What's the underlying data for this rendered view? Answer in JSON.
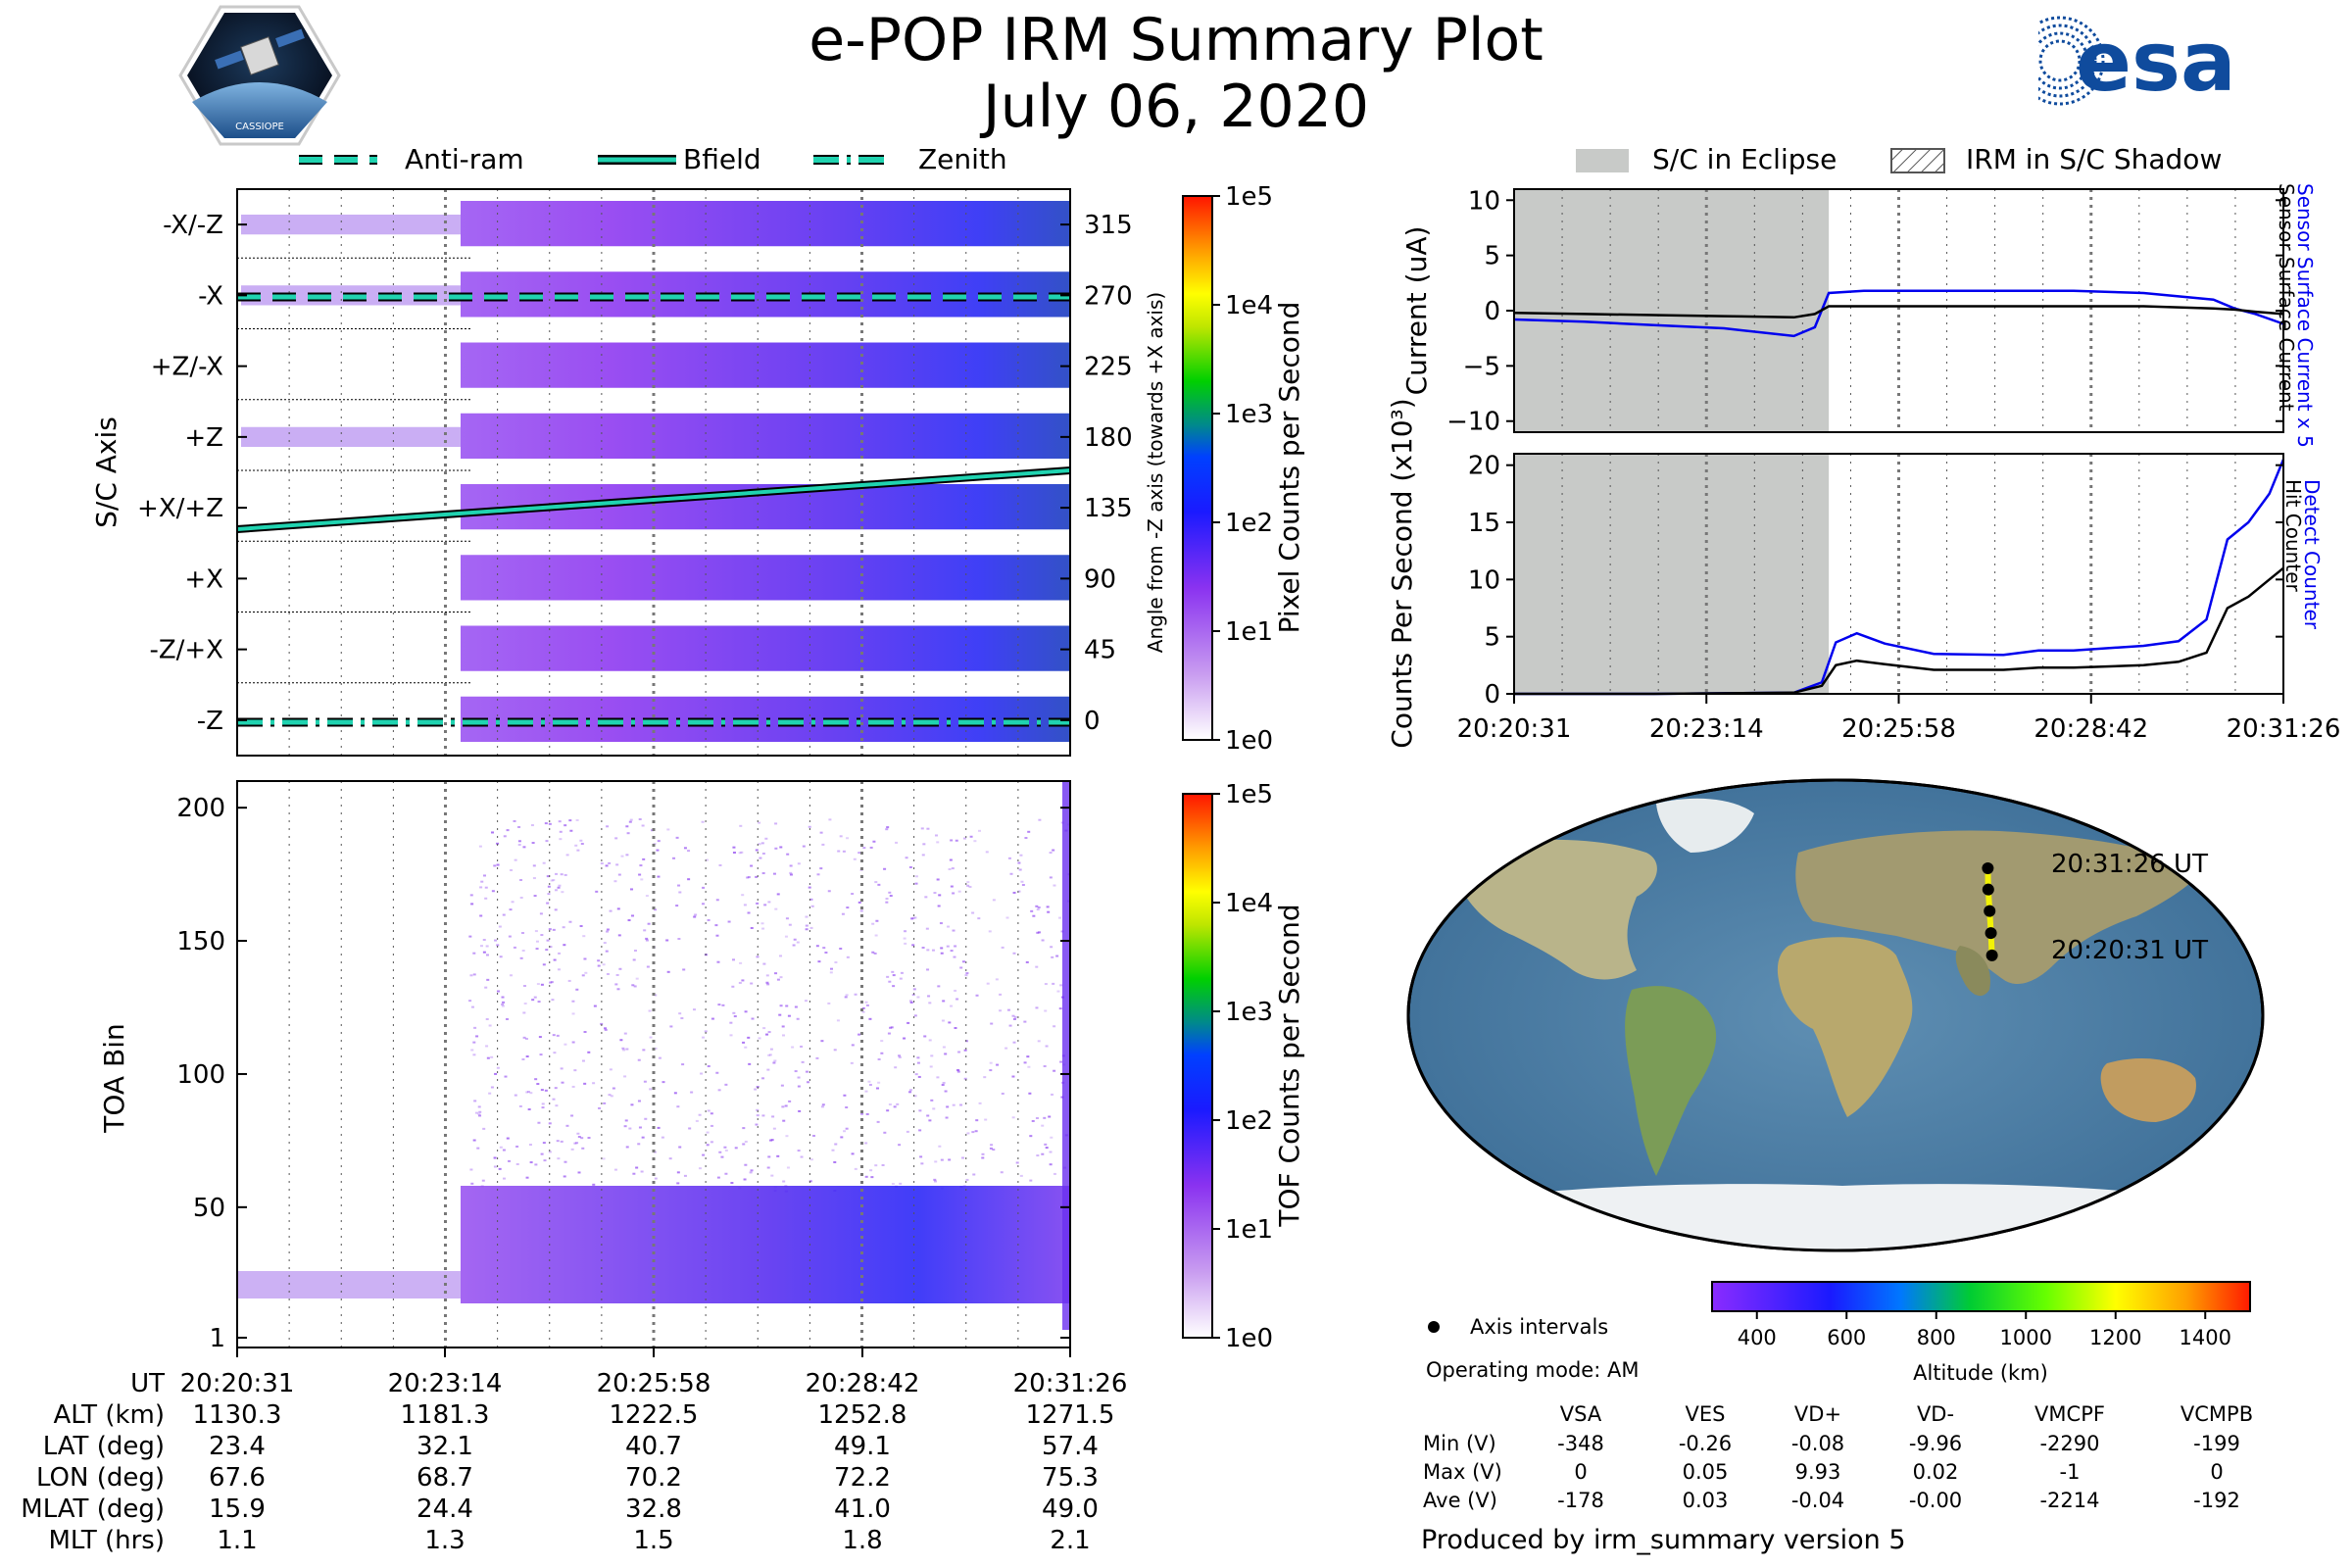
{
  "header": {
    "title": "e-POP IRM Summary Plot",
    "date": "July 06, 2020",
    "cassiope_logo_text": "CASSIOPE",
    "esa_logo_text": "esa"
  },
  "colors": {
    "anti_ram": "#20d3b0",
    "bfield": "#20d3b0",
    "zenith": "#20d3b0",
    "detect_counter": "#0000ee",
    "hit_counter": "#000000",
    "eclipse": "#c8cac8",
    "orbit_dot": "#000000",
    "orbit_fill": "#f2f205"
  },
  "spectrogram_panel": {
    "legend": [
      {
        "label": "Anti-ram",
        "style": "dashed"
      },
      {
        "label": "Bfield",
        "style": "solid"
      },
      {
        "label": "Zenith",
        "style": "dashdot"
      }
    ],
    "ylabel": "S/C Axis",
    "y2label": "Angle from -Z axis (towards +X axis)",
    "axis_labels": [
      "-X/-Z",
      "-X",
      "+Z/-X",
      "+Z",
      "+X/+Z",
      "+X",
      "-Z/+X",
      "-Z"
    ],
    "angle_ticks": [
      "315",
      "270",
      "225",
      "180",
      "135",
      "90",
      "45",
      "0"
    ],
    "colorbar_label": "Pixel Counts per Second",
    "colorbar_ticks": [
      "1e0",
      "1e1",
      "1e2",
      "1e3",
      "1e4",
      "1e5"
    ]
  },
  "toa_panel": {
    "ylabel": "TOA Bin",
    "yticks": [
      "1",
      "50",
      "100",
      "150",
      "200"
    ],
    "colorbar_label": "TOF Counts per Second",
    "colorbar_ticks": [
      "1e0",
      "1e1",
      "1e2",
      "1e3",
      "1e4",
      "1e5"
    ]
  },
  "ephemeris": {
    "row_labels": [
      "UT",
      "ALT (km)",
      "LAT (deg)",
      "LON (deg)",
      "MLAT (deg)",
      "MLT (hrs)"
    ],
    "columns": [
      [
        "20:20:31",
        "1130.3",
        "23.4",
        "67.6",
        "15.9",
        "1.1"
      ],
      [
        "20:23:14",
        "1181.3",
        "32.1",
        "68.7",
        "24.4",
        "1.3"
      ],
      [
        "20:25:58",
        "1222.5",
        "40.7",
        "70.2",
        "32.8",
        "1.5"
      ],
      [
        "20:28:42",
        "1252.8",
        "49.1",
        "72.2",
        "41.0",
        "1.8"
      ],
      [
        "20:31:26",
        "1271.5",
        "57.4",
        "75.3",
        "49.0",
        "2.1"
      ]
    ]
  },
  "right_legend": [
    {
      "label": "S/C in Eclipse"
    },
    {
      "label": "IRM in S/C Shadow"
    }
  ],
  "time_ticks": [
    "20:20:31",
    "20:23:14",
    "20:25:58",
    "20:28:42",
    "20:31:26"
  ],
  "chart_data": [
    {
      "type": "line",
      "name": "current",
      "ylabel": "Current (uA)",
      "ylim": [
        -11,
        11
      ],
      "yticks": [
        "10",
        "5",
        "0",
        "−5",
        "−10"
      ],
      "right_labels": [
        "Sensor Surface Current x 5",
        "Sensor Surface Current"
      ],
      "x_minutes": [
        0,
        1,
        2,
        3,
        4,
        4.3,
        4.5,
        5,
        6,
        7,
        8,
        9,
        10,
        10.3,
        10.6,
        11
      ],
      "series": [
        {
          "name": "Sensor Surface Current x 5",
          "values": [
            -0.8,
            -1.0,
            -1.3,
            -1.6,
            -2.3,
            -1.5,
            1.6,
            1.8,
            1.8,
            1.8,
            1.8,
            1.6,
            1.0,
            0.2,
            -0.3,
            -1.2
          ]
        },
        {
          "name": "Sensor Surface Current",
          "values": [
            -0.2,
            -0.3,
            -0.4,
            -0.5,
            -0.6,
            -0.3,
            0.4,
            0.4,
            0.4,
            0.4,
            0.4,
            0.4,
            0.2,
            0.1,
            -0.1,
            -0.3
          ]
        }
      ],
      "eclipse_end_minute": 4.5
    },
    {
      "type": "line",
      "name": "counts",
      "ylabel": "Counts Per Second (x10³)",
      "ylim": [
        0,
        21
      ],
      "yticks": [
        "20",
        "15",
        "10",
        "5",
        "0"
      ],
      "right_labels": [
        "Detect Counter",
        "Hit Counter"
      ],
      "x_minutes": [
        0,
        2,
        4,
        4.4,
        4.6,
        4.9,
        5.3,
        6,
        7,
        7.5,
        8,
        9,
        9.5,
        9.9,
        10.2,
        10.5,
        10.8,
        11
      ],
      "series": [
        {
          "name": "Detect Counter",
          "values": [
            0,
            0,
            0.1,
            1.0,
            4.5,
            5.3,
            4.4,
            3.5,
            3.4,
            3.8,
            3.8,
            4.2,
            4.6,
            6.5,
            13.5,
            15.0,
            17.5,
            20.5
          ]
        },
        {
          "name": "Hit Counter",
          "values": [
            0,
            0,
            0.1,
            0.7,
            2.5,
            2.9,
            2.6,
            2.1,
            2.1,
            2.3,
            2.3,
            2.5,
            2.8,
            3.6,
            7.5,
            8.5,
            10.0,
            11.0
          ]
        }
      ],
      "eclipse_end_minute": 4.5
    }
  ],
  "map_panel": {
    "start_label": "20:20:31 UT",
    "end_label": "20:31:26 UT",
    "orbit_points": [
      {
        "lat": 23.4,
        "lon": 67.6,
        "alt": 1130.3
      },
      {
        "lat": 32.1,
        "lon": 68.7,
        "alt": 1181.3
      },
      {
        "lat": 40.7,
        "lon": 70.2,
        "alt": 1222.5
      },
      {
        "lat": 49.1,
        "lon": 72.2,
        "alt": 1252.8
      },
      {
        "lat": 57.4,
        "lon": 75.3,
        "alt": 1271.5
      }
    ],
    "axis_intervals_label": "Axis intervals",
    "operating_mode": "Operating mode: AM",
    "altitude_ticks": [
      "400",
      "600",
      "800",
      "1000",
      "1200",
      "1400"
    ],
    "altitude_label": "Altitude (km)"
  },
  "voltages": {
    "headers": [
      "VSA",
      "VES",
      "VD+",
      "VD-",
      "VMCPF",
      "VCMPB"
    ],
    "rows": [
      {
        "label": "Min (V)",
        "values": [
          "-348",
          "-0.26",
          "-0.08",
          "-9.96",
          "-2290",
          "-199"
        ]
      },
      {
        "label": "Max (V)",
        "values": [
          "0",
          "0.05",
          "9.93",
          "0.02",
          "-1",
          "0"
        ]
      },
      {
        "label": "Ave (V)",
        "values": [
          "-178",
          "0.03",
          "-0.04",
          "-0.00",
          "-2214",
          "-192"
        ]
      }
    ]
  },
  "footer": {
    "produced_by": "Produced by irm_summary version 5"
  }
}
